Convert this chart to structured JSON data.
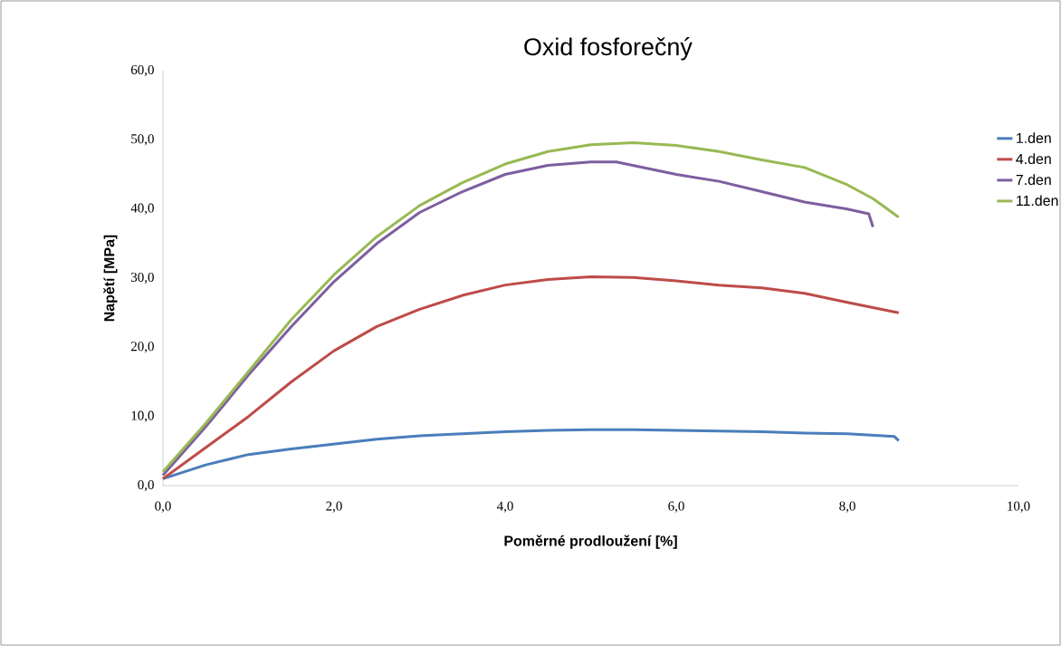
{
  "chart_data": {
    "type": "line",
    "title": "Oxid fosforečný",
    "xlabel": "Poměrné prodloužení [%]",
    "ylabel": "Napětí [MPa]",
    "xlim": [
      0,
      10
    ],
    "ylim": [
      0,
      60
    ],
    "xticks": [
      {
        "value": 0,
        "label": "0,0"
      },
      {
        "value": 2,
        "label": "2,0"
      },
      {
        "value": 4,
        "label": "4,0"
      },
      {
        "value": 6,
        "label": "6,0"
      },
      {
        "value": 8,
        "label": "8,0"
      },
      {
        "value": 10,
        "label": "10,0"
      }
    ],
    "yticks": [
      {
        "value": 0,
        "label": "0,0"
      },
      {
        "value": 10,
        "label": "10,0"
      },
      {
        "value": 20,
        "label": "20,0"
      },
      {
        "value": 30,
        "label": "30,0"
      },
      {
        "value": 40,
        "label": "40,0"
      },
      {
        "value": 50,
        "label": "50,0"
      },
      {
        "value": 60,
        "label": "60,0"
      }
    ],
    "grid": false,
    "legend": "right",
    "marker": "none",
    "line_style": "solid",
    "series": [
      {
        "name": "1.den",
        "color": "#4a7ebb",
        "x": [
          0,
          0.5,
          1,
          1.5,
          2,
          2.5,
          3,
          3.5,
          4,
          4.5,
          5,
          5.5,
          6,
          6.5,
          7,
          7.5,
          8,
          8.55,
          8.6
        ],
        "values": [
          1.0,
          3.0,
          4.5,
          5.3,
          6.0,
          6.7,
          7.2,
          7.5,
          7.8,
          8.0,
          8.1,
          8.1,
          8.0,
          7.9,
          7.8,
          7.6,
          7.5,
          7.1,
          6.5
        ]
      },
      {
        "name": "4.den",
        "color": "#be4b48",
        "x": [
          0,
          0.5,
          1,
          1.5,
          2,
          2.5,
          3,
          3.5,
          4,
          4.5,
          5,
          5.5,
          6,
          6.5,
          7,
          7.5,
          8,
          8.6
        ],
        "values": [
          1.0,
          5.5,
          10.0,
          15.0,
          19.5,
          23.0,
          25.5,
          27.5,
          29.0,
          29.8,
          30.2,
          30.1,
          29.6,
          29.0,
          28.6,
          27.8,
          26.5,
          25.0
        ]
      },
      {
        "name": "7.den",
        "color": "#7d5fa0",
        "x": [
          0,
          0.5,
          1,
          1.5,
          2,
          2.5,
          3,
          3.5,
          4,
          4.5,
          5,
          5.3,
          6,
          6.5,
          7,
          7.5,
          8,
          8.25,
          8.3
        ],
        "values": [
          1.5,
          8.5,
          16.0,
          23.0,
          29.5,
          35.0,
          39.5,
          42.5,
          45.0,
          46.3,
          46.8,
          46.8,
          45.0,
          44.0,
          42.5,
          41.0,
          40.0,
          39.3,
          37.4
        ]
      },
      {
        "name": "11.den",
        "color": "#98b954",
        "x": [
          0,
          0.5,
          1,
          1.5,
          2,
          2.5,
          3,
          3.5,
          4,
          4.5,
          5,
          5.5,
          6,
          6.5,
          7,
          7.5,
          8,
          8.3,
          8.6
        ],
        "values": [
          2.0,
          9.0,
          16.5,
          24.0,
          30.5,
          36.0,
          40.5,
          43.8,
          46.5,
          48.3,
          49.3,
          49.6,
          49.2,
          48.3,
          47.1,
          46.0,
          43.5,
          41.5,
          38.8
        ]
      }
    ]
  }
}
